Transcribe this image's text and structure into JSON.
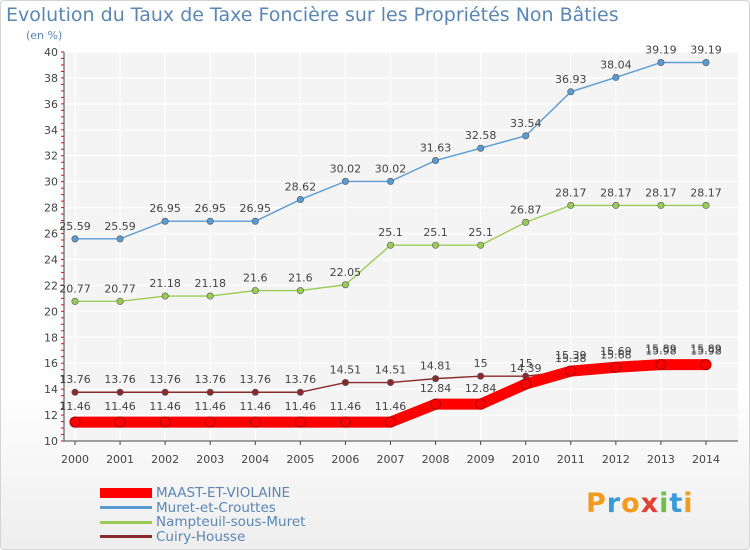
{
  "title": "Evolution du Taux de Taxe Foncière sur les Propriétés Non Bâties",
  "unit_label": "(en %)",
  "logo": {
    "letters": [
      "P",
      "r",
      "o",
      "x",
      "i",
      "t",
      "i"
    ],
    "colors": [
      "#f29b1e",
      "#3a9bd8",
      "#f29b1e",
      "#e04030",
      "#6cc04a",
      "#3a9bd8",
      "#f29b1e"
    ]
  },
  "chart_data": {
    "type": "line",
    "x": [
      "2000",
      "2001",
      "2002",
      "2003",
      "2004",
      "2005",
      "2006",
      "2007",
      "2008",
      "2009",
      "2010",
      "2011",
      "2012",
      "2013",
      "2014"
    ],
    "ylim": [
      10,
      40
    ],
    "yticks": [
      10,
      12,
      14,
      16,
      18,
      20,
      22,
      24,
      26,
      28,
      30,
      32,
      34,
      36,
      38,
      40
    ],
    "grid": true,
    "legend_position": "bottom-left",
    "series": [
      {
        "name": "MAAST-ET-VIOLAINE",
        "color": "#ff0000",
        "values": [
          11.46,
          11.46,
          11.46,
          11.46,
          11.46,
          11.46,
          11.46,
          11.46,
          12.84,
          12.84,
          14.39,
          15.39,
          15.69,
          15.89,
          15.89
        ],
        "labels": [
          "11.46",
          "11.46",
          "11.46",
          "11.46",
          "11.46",
          "11.46",
          "11.46",
          "11.46",
          "12.84",
          "12.84",
          "14.39",
          "15.39",
          "15.69",
          "15.89",
          "15.89"
        ]
      },
      {
        "name": "Muret-et-Crouttes",
        "color": "#5a9bd4",
        "values": [
          25.59,
          25.59,
          26.95,
          26.95,
          26.95,
          28.62,
          30.02,
          30.02,
          31.63,
          32.58,
          33.54,
          36.93,
          38.04,
          39.19,
          39.19
        ],
        "labels": [
          "25.59",
          "25.59",
          "26.95",
          "26.95",
          "26.95",
          "28.62",
          "30.02",
          "30.02",
          "31.63",
          "32.58",
          "33.54",
          "36.93",
          "38.04",
          "39.19",
          "39.19"
        ]
      },
      {
        "name": "Nampteuil-sous-Muret",
        "color": "#99cc55",
        "values": [
          20.77,
          20.77,
          21.18,
          21.18,
          21.6,
          21.6,
          22.05,
          25.1,
          25.1,
          25.1,
          26.87,
          28.17,
          28.17,
          28.17,
          28.17
        ],
        "labels": [
          "20.77",
          "20.77",
          "21.18",
          "21.18",
          "21.6",
          "21.6",
          "22.05",
          "25.1",
          "25.1",
          "25.1",
          "26.87",
          "28.17",
          "28.17",
          "28.17",
          "28.17"
        ]
      },
      {
        "name": "Cuiry-Housse",
        "color": "#8b2a2a",
        "values": [
          13.76,
          13.76,
          13.76,
          13.76,
          13.76,
          13.76,
          14.51,
          14.51,
          14.81,
          15,
          15,
          15.38,
          15.68,
          15.98,
          15.98
        ],
        "labels": [
          "13.76",
          "13.76",
          "13.76",
          "13.76",
          "13.76",
          "13.76",
          "14.51",
          "14.51",
          "14.81",
          "15",
          "15",
          "15.38",
          "15.68",
          "15.98",
          "15.98"
        ]
      }
    ]
  }
}
